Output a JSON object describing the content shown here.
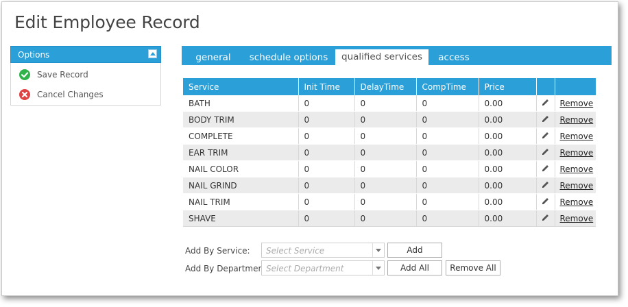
{
  "page": {
    "title": "Edit Employee Record"
  },
  "options": {
    "title": "Options",
    "items": [
      {
        "label": "Save Record",
        "icon": "check-circle-icon",
        "color": "#2fb34a"
      },
      {
        "label": "Cancel Changes",
        "icon": "x-circle-icon",
        "color": "#e04343"
      }
    ]
  },
  "tabs": [
    {
      "label": "general",
      "active": false
    },
    {
      "label": "schedule options",
      "active": false
    },
    {
      "label": "qualified services",
      "active": true
    },
    {
      "label": "access",
      "active": false
    }
  ],
  "grid": {
    "columns": [
      "Service",
      "Init Time",
      "DelayTime",
      "CompTime",
      "Price",
      "",
      ""
    ],
    "remove_label": "Remove",
    "rows": [
      {
        "service": "BATH",
        "init": "0",
        "delay": "0",
        "comp": "0",
        "price": "0.00"
      },
      {
        "service": "BODY TRIM",
        "init": "0",
        "delay": "0",
        "comp": "0",
        "price": "0.00"
      },
      {
        "service": "COMPLETE",
        "init": "0",
        "delay": "0",
        "comp": "0",
        "price": "0.00"
      },
      {
        "service": "EAR TRIM",
        "init": "0",
        "delay": "0",
        "comp": "0",
        "price": "0.00"
      },
      {
        "service": "NAIL COLOR",
        "init": "0",
        "delay": "0",
        "comp": "0",
        "price": "0.00"
      },
      {
        "service": "NAIL GRIND",
        "init": "0",
        "delay": "0",
        "comp": "0",
        "price": "0.00"
      },
      {
        "service": "NAIL TRIM",
        "init": "0",
        "delay": "0",
        "comp": "0",
        "price": "0.00"
      },
      {
        "service": "SHAVE",
        "init": "0",
        "delay": "0",
        "comp": "0",
        "price": "0.00"
      }
    ]
  },
  "add_form": {
    "service_label": "Add By Service:",
    "service_placeholder": "Select Service",
    "department_label": "Add By Department:",
    "department_placeholder": "Select Department",
    "add_label": "Add",
    "add_all_label": "Add All",
    "remove_all_label": "Remove All"
  },
  "colors": {
    "accent": "#2a9fd8",
    "row_alt": "#ebebeb"
  }
}
